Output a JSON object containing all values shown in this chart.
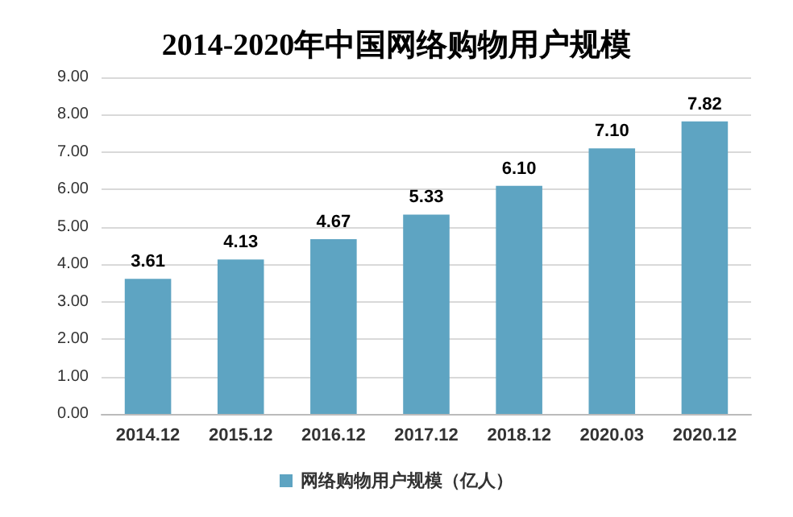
{
  "chart_data": {
    "type": "bar",
    "title": "2014-2020年中国网络购物用户规模",
    "categories": [
      "2014.12",
      "2015.12",
      "2016.12",
      "2017.12",
      "2018.12",
      "2020.03",
      "2020.12"
    ],
    "series": [
      {
        "name": "网络购物用户规模（亿人）",
        "color": "#5ea4c2",
        "values": [
          3.61,
          4.13,
          4.67,
          5.33,
          6.1,
          7.1,
          7.82
        ]
      }
    ],
    "ylim": [
      0,
      9
    ],
    "yticks": [
      {
        "value": 0,
        "label": "0.00"
      },
      {
        "value": 1,
        "label": "1.00"
      },
      {
        "value": 2,
        "label": "2.00"
      },
      {
        "value": 3,
        "label": "3.00"
      },
      {
        "value": 4,
        "label": "4.00"
      },
      {
        "value": 5,
        "label": "5.00"
      },
      {
        "value": 6,
        "label": "6.00"
      },
      {
        "value": 7,
        "label": "7.00"
      },
      {
        "value": 8,
        "label": "8.00"
      },
      {
        "value": 9,
        "label": "9.00"
      }
    ],
    "value_labels": [
      "3.61",
      "4.13",
      "4.67",
      "5.33",
      "6.10",
      "7.10",
      "7.82"
    ],
    "grid": "y",
    "legend": "bottom"
  }
}
